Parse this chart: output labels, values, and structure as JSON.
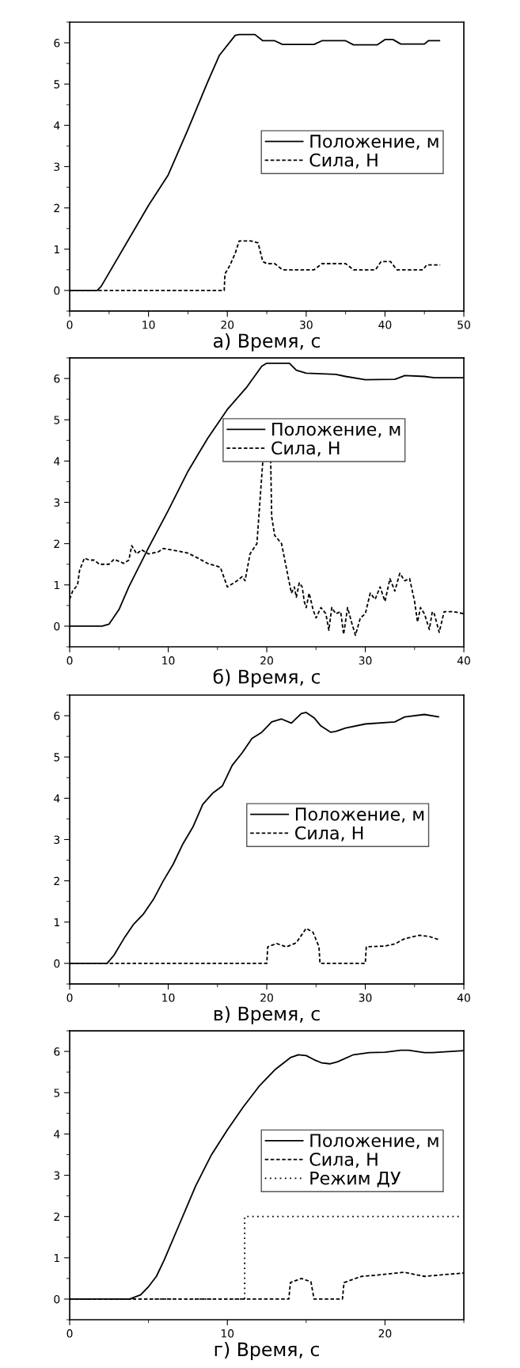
{
  "chart_data": [
    {
      "type": "line",
      "xlabel": "а) Время, с",
      "xlim": [
        0,
        50
      ],
      "xticks": [
        0,
        10,
        20,
        30,
        40,
        50
      ],
      "ylim": [
        -0.5,
        6.5
      ],
      "yticks": [
        0,
        1,
        2,
        3,
        4,
        5,
        6
      ],
      "legend": "right",
      "grid": false,
      "series": [
        {
          "name": "Положение, м",
          "color": "#000000",
          "line_style": "solid",
          "x": [
            0,
            3.5,
            4,
            10,
            12.5,
            15,
            17.5,
            19,
            21,
            21.5,
            23.5,
            24.5,
            26,
            27,
            31,
            32,
            35,
            36,
            39,
            40,
            41,
            42,
            45,
            45.5,
            47
          ],
          "values": [
            0,
            0,
            0.1,
            2.06,
            2.8,
            3.9,
            5.05,
            5.7,
            6.18,
            6.2,
            6.2,
            6.05,
            6.05,
            5.96,
            5.96,
            6.05,
            6.05,
            5.95,
            5.95,
            6.08,
            6.08,
            5.97,
            5.97,
            6.05,
            6.05
          ]
        },
        {
          "name": "Сила, Н",
          "color": "#000000",
          "line_style": "dashed",
          "x": [
            0,
            19.6,
            19.7,
            20.3,
            21,
            21.5,
            23,
            23.9,
            24.5,
            25,
            26,
            27,
            31,
            32,
            35,
            36,
            38.8,
            39.5,
            40.7,
            41.5,
            44.8,
            45.3,
            47
          ],
          "values": [
            0,
            0,
            0.4,
            0.6,
            0.9,
            1.2,
            1.2,
            1.15,
            0.7,
            0.65,
            0.65,
            0.5,
            0.5,
            0.65,
            0.65,
            0.5,
            0.5,
            0.7,
            0.7,
            0.5,
            0.5,
            0.62,
            0.62
          ]
        }
      ]
    },
    {
      "type": "line",
      "xlabel": "б) Время, с",
      "xlim": [
        0,
        40
      ],
      "xticks": [
        0,
        10,
        20,
        30,
        40
      ],
      "ylim": [
        -0.5,
        6.5
      ],
      "yticks": [
        0,
        1,
        2,
        3,
        4,
        5,
        6
      ],
      "legend": "top",
      "grid": false,
      "series": [
        {
          "name": "Положение, м",
          "color": "#000000",
          "line_style": "solid",
          "x": [
            0,
            3.3,
            4,
            5,
            6,
            8,
            10,
            12,
            14,
            16,
            18,
            19.5,
            20,
            22.3,
            23,
            24,
            27,
            28,
            30,
            33,
            34,
            36,
            37,
            40
          ],
          "values": [
            0,
            0,
            0.05,
            0.4,
            0.95,
            1.9,
            2.8,
            3.75,
            4.55,
            5.25,
            5.8,
            6.3,
            6.37,
            6.37,
            6.2,
            6.13,
            6.1,
            6.05,
            5.97,
            5.98,
            6.07,
            6.05,
            6.02,
            6.02
          ]
        },
        {
          "name": "Сила, Н",
          "color": "#000000",
          "line_style": "dashed",
          "x": [
            0,
            0.3,
            0.8,
            1,
            1.5,
            2,
            2.5,
            3,
            4,
            4.5,
            5.5,
            6,
            6.3,
            6.8,
            7.3,
            8,
            9,
            9.5,
            11,
            12,
            13,
            14,
            15,
            15.3,
            16,
            17,
            17.5,
            17.8,
            18.3,
            19,
            19.3,
            19.6,
            20.4,
            20.5,
            20.8,
            21.5,
            22,
            22.5,
            22.8,
            23,
            23.3,
            23.6,
            23.8,
            24,
            24.3,
            24.7,
            25,
            25.5,
            26,
            26.3,
            26.6,
            27,
            27.5,
            27.8,
            28.2,
            28.6,
            29,
            29.5,
            30,
            30.5,
            31,
            31.5,
            32,
            32.5,
            33,
            33.5,
            34,
            34.5,
            35,
            35.3,
            35.6,
            36,
            36.5,
            36.8,
            37,
            37.5,
            38,
            39,
            40
          ],
          "values": [
            0.65,
            0.85,
            1.0,
            1.35,
            1.65,
            1.6,
            1.6,
            1.5,
            1.5,
            1.62,
            1.52,
            1.6,
            1.95,
            1.75,
            1.85,
            1.75,
            1.8,
            1.88,
            1.82,
            1.77,
            1.65,
            1.52,
            1.45,
            1.42,
            0.95,
            1.1,
            1.2,
            1.1,
            1.75,
            2.0,
            3.0,
            4.0,
            4.0,
            2.65,
            2.2,
            2.0,
            1.4,
            0.8,
            0.95,
            0.7,
            1.05,
            0.95,
            0.6,
            0.45,
            0.8,
            0.4,
            0.2,
            0.45,
            0.3,
            -0.1,
            0.45,
            0.3,
            0.35,
            -0.2,
            0.45,
            0.1,
            -0.22,
            0.2,
            0.3,
            0.8,
            0.65,
            0.95,
            0.6,
            1.15,
            0.85,
            1.28,
            1.1,
            1.15,
            0.6,
            0.1,
            0.45,
            0.3,
            -0.08,
            0.35,
            0.3,
            -0.15,
            0.35,
            0.35,
            0.3
          ]
        }
      ]
    },
    {
      "type": "line",
      "xlabel": "в) Время, с",
      "xlim": [
        0,
        40
      ],
      "xticks": [
        0,
        10,
        20,
        30,
        40
      ],
      "ylim": [
        -0.5,
        6.5
      ],
      "yticks": [
        0,
        1,
        2,
        3,
        4,
        5,
        6
      ],
      "legend": "center",
      "grid": false,
      "series": [
        {
          "name": "Положение, м",
          "color": "#000000",
          "line_style": "solid",
          "x": [
            0,
            3.8,
            4.5,
            5.5,
            6.5,
            7.5,
            8.5,
            9.5,
            10.5,
            11.5,
            12.5,
            13.5,
            14.5,
            15.5,
            16.5,
            17.5,
            18.5,
            19.5,
            20.5,
            21.5,
            22.5,
            23.5,
            24,
            24.8,
            25.5,
            26.5,
            27,
            28,
            30,
            33,
            34,
            36,
            37.5
          ],
          "values": [
            0,
            0,
            0.2,
            0.6,
            0.95,
            1.2,
            1.55,
            2.0,
            2.4,
            2.9,
            3.3,
            3.85,
            4.12,
            4.3,
            4.8,
            5.1,
            5.45,
            5.6,
            5.85,
            5.92,
            5.82,
            6.05,
            6.08,
            5.95,
            5.75,
            5.6,
            5.62,
            5.7,
            5.8,
            5.85,
            5.97,
            6.03,
            5.97
          ]
        },
        {
          "name": "Сила, Н",
          "color": "#000000",
          "line_style": "dashed",
          "x": [
            0,
            20,
            20.1,
            21,
            22,
            23,
            24,
            24.7,
            25.3,
            25.4,
            30,
            30.1,
            32,
            33,
            34,
            35.5,
            36.5,
            37.5
          ],
          "values": [
            0,
            0,
            0.4,
            0.48,
            0.4,
            0.5,
            0.85,
            0.75,
            0.4,
            0,
            0,
            0.4,
            0.42,
            0.47,
            0.6,
            0.68,
            0.65,
            0.57
          ]
        }
      ]
    },
    {
      "type": "line",
      "xlabel": "г) Время, с",
      "xlim": [
        0,
        25
      ],
      "xticks": [
        0,
        10,
        20
      ],
      "ylim": [
        -0.5,
        6.5
      ],
      "yticks": [
        0,
        1,
        2,
        3,
        4,
        5,
        6
      ],
      "legend": "right",
      "grid": false,
      "series": [
        {
          "name": "Положение, м",
          "color": "#000000",
          "line_style": "solid",
          "x": [
            0,
            3.8,
            4.5,
            5,
            5.5,
            6,
            7,
            8,
            9,
            10,
            11,
            12,
            13,
            14,
            14.5,
            15,
            15.5,
            16,
            16.5,
            17,
            18,
            19,
            20,
            21,
            21.5,
            22.5,
            23,
            25
          ],
          "values": [
            0,
            0,
            0.1,
            0.3,
            0.55,
            0.95,
            1.85,
            2.75,
            3.5,
            4.1,
            4.65,
            5.15,
            5.55,
            5.85,
            5.92,
            5.9,
            5.8,
            5.72,
            5.7,
            5.75,
            5.92,
            5.97,
            5.98,
            6.03,
            6.03,
            5.97,
            5.97,
            6.02
          ]
        },
        {
          "name": "Сила, Н",
          "color": "#000000",
          "line_style": "dashed",
          "x": [
            0,
            13.9,
            14,
            14.7,
            15.3,
            15.5,
            17.3,
            17.4,
            18.5,
            19.5,
            21.2,
            22.5,
            24,
            25
          ],
          "values": [
            0,
            0,
            0.4,
            0.5,
            0.42,
            0,
            0,
            0.4,
            0.55,
            0.58,
            0.65,
            0.55,
            0.6,
            0.63
          ]
        },
        {
          "name": "Режим ДУ",
          "color": "#000000",
          "line_style": "dotted",
          "x": [
            0,
            11.1,
            11.1,
            24.8
          ],
          "values": [
            0,
            0,
            2,
            2
          ]
        }
      ]
    }
  ]
}
